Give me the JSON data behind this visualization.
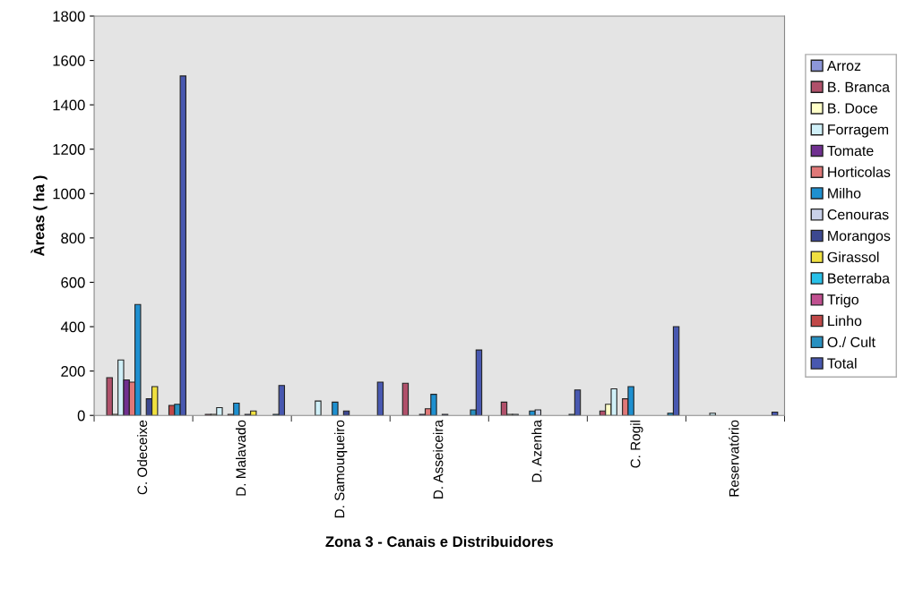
{
  "chart_data": {
    "type": "bar",
    "xlabel": "Zona 3 - Canais e Distribuidores",
    "ylabel": "Àreas ( ha )",
    "categories": [
      "C. Odeceixe",
      "D. Malavado",
      "D. Samouqueiro",
      "D. Asseiceira",
      "D. Azenha",
      "C. Rogil",
      "Reservatório"
    ],
    "series": [
      {
        "name": "Arroz",
        "color": "#8c96d8",
        "values": [
          null,
          null,
          null,
          null,
          null,
          null,
          null
        ]
      },
      {
        "name": "B. Branca",
        "color": "#b0506a",
        "values": [
          170,
          5,
          null,
          145,
          60,
          20,
          null
        ]
      },
      {
        "name": "B. Doce",
        "color": "#ffffc8",
        "values": [
          5,
          5,
          null,
          null,
          5,
          50,
          null
        ]
      },
      {
        "name": "Forragem",
        "color": "#d0f0f8",
        "values": [
          250,
          35,
          65,
          null,
          5,
          120,
          10
        ]
      },
      {
        "name": "Tomate",
        "color": "#703090",
        "values": [
          160,
          null,
          null,
          5,
          null,
          null,
          null
        ]
      },
      {
        "name": "Horticolas",
        "color": "#e07878",
        "values": [
          150,
          5,
          null,
          30,
          null,
          75,
          null
        ]
      },
      {
        "name": "Milho",
        "color": "#1e90d0",
        "values": [
          500,
          55,
          60,
          95,
          20,
          130,
          null
        ]
      },
      {
        "name": "Cenouras",
        "color": "#c8d0e8",
        "values": [
          null,
          null,
          null,
          null,
          25,
          null,
          null
        ]
      },
      {
        "name": "Morangos",
        "color": "#3c4890",
        "values": [
          75,
          5,
          20,
          5,
          null,
          null,
          null
        ]
      },
      {
        "name": "Girassol",
        "color": "#f0e040",
        "values": [
          130,
          20,
          null,
          null,
          null,
          null,
          null
        ]
      },
      {
        "name": "Beterraba",
        "color": "#28c0e8",
        "values": [
          null,
          null,
          null,
          null,
          null,
          null,
          null
        ]
      },
      {
        "name": "Trigo",
        "color": "#c05090",
        "values": [
          null,
          null,
          null,
          null,
          null,
          null,
          null
        ]
      },
      {
        "name": "Linho",
        "color": "#c04848",
        "values": [
          45,
          null,
          null,
          null,
          null,
          null,
          null
        ]
      },
      {
        "name": "O./ Cult",
        "color": "#2890c0",
        "values": [
          50,
          5,
          null,
          25,
          5,
          10,
          null
        ]
      },
      {
        "name": "Total",
        "color": "#4858b0",
        "values": [
          1530,
          135,
          150,
          295,
          115,
          400,
          15
        ]
      }
    ],
    "ylim": [
      0,
      1800
    ],
    "yticks": [
      0,
      200,
      400,
      600,
      800,
      1000,
      1200,
      1400,
      1600,
      1800
    ],
    "legend": "right"
  }
}
